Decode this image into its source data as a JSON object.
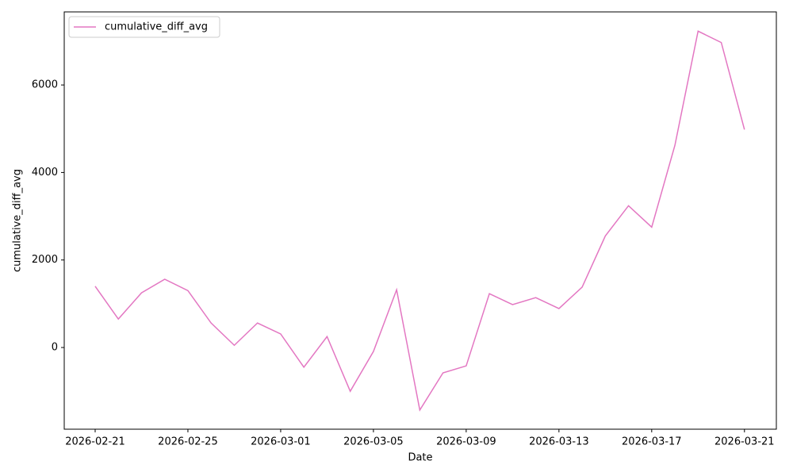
{
  "chart_data": {
    "type": "line",
    "x_label": "Date",
    "y_label": "cumulative_diff_avg",
    "x": [
      "2026-02-21",
      "2026-02-22",
      "2026-02-23",
      "2026-02-24",
      "2026-02-25",
      "2026-02-26",
      "2026-02-27",
      "2026-02-28",
      "2026-03-01",
      "2026-03-02",
      "2026-03-03",
      "2026-03-04",
      "2026-03-05",
      "2026-03-06",
      "2026-03-07",
      "2026-03-08",
      "2026-03-09",
      "2026-03-10",
      "2026-03-11",
      "2026-03-12",
      "2026-03-13",
      "2026-03-14",
      "2026-03-15",
      "2026-03-16",
      "2026-03-17",
      "2026-03-18",
      "2026-03-19",
      "2026-03-20",
      "2026-03-21"
    ],
    "series": [
      {
        "name": "cumulative_diff_avg",
        "color": "#e377c2",
        "values": [
          1400,
          650,
          1250,
          1560,
          1300,
          560,
          50,
          560,
          310,
          -450,
          250,
          -1000,
          -90,
          1320,
          -1430,
          -580,
          -420,
          1230,
          980,
          1140,
          890,
          1380,
          2550,
          3240,
          2750,
          4620,
          7230,
          6970,
          4980
        ]
      }
    ],
    "xlim": [
      "2026-02-19T16:00",
      "2026-03-22T09:00"
    ],
    "xticks": [
      "2026-02-21",
      "2026-02-25",
      "2026-03-01",
      "2026-03-05",
      "2026-03-09",
      "2026-03-13",
      "2026-03-17",
      "2026-03-21"
    ],
    "ylim": [
      -1867,
      7670
    ],
    "yticks": [
      0,
      2000,
      4000,
      6000
    ],
    "legend": "upper left"
  }
}
